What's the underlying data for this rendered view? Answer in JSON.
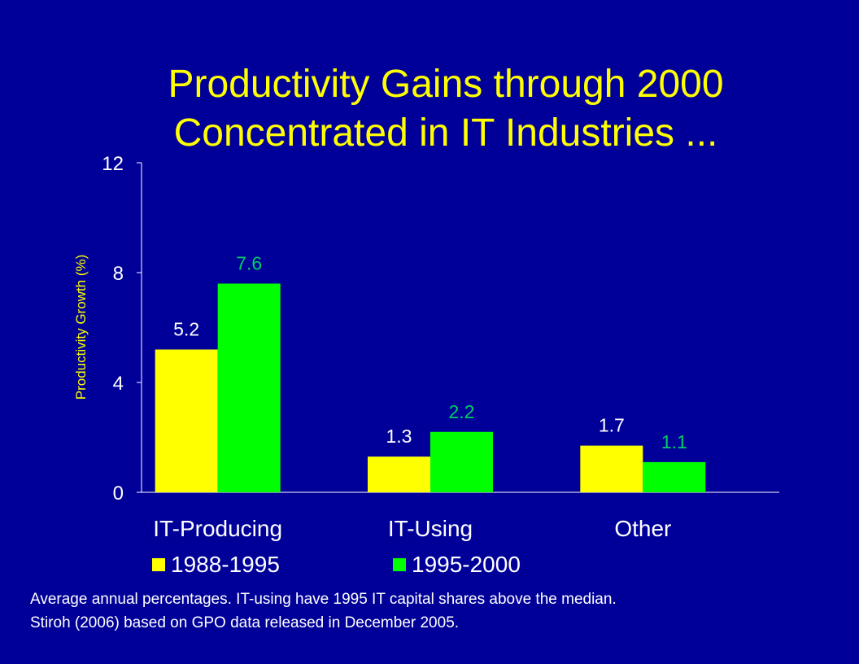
{
  "title_line1": "Productivity Gains through 2000",
  "title_line2": "Concentrated in IT Industries ...",
  "colors": {
    "background": "#000099",
    "title": "#FFFF00",
    "series_1988_1995": "#FFFF00",
    "series_1995_2000": "#00FF00",
    "axis_text": "#FFFFFF"
  },
  "chart_data": {
    "type": "bar",
    "title": "Productivity Gains through 2000 Concentrated in IT Industries ...",
    "xlabel": "",
    "ylabel": "Productivity Growth (%)",
    "ylim": [
      0,
      12
    ],
    "yticks": [
      0,
      4,
      8,
      12
    ],
    "grid": false,
    "legend_position": "bottom",
    "categories": [
      "IT-Producing",
      "IT-Using",
      "Other"
    ],
    "series": [
      {
        "name": "1988-1995",
        "values": [
          5.2,
          1.3,
          1.7
        ],
        "labels": [
          "5.2",
          "1.3",
          "1.7"
        ],
        "color": "#FFFF00"
      },
      {
        "name": "1995-2000",
        "values": [
          7.6,
          2.2,
          1.1
        ],
        "labels": [
          "7.6",
          "2.2",
          "1.1"
        ],
        "color": "#00FF00"
      }
    ]
  },
  "notes": [
    "Average annual percentages.  IT-using have 1995 IT capital shares above the median.",
    "Stiroh (2006) based on GPO data released in December 2005."
  ]
}
